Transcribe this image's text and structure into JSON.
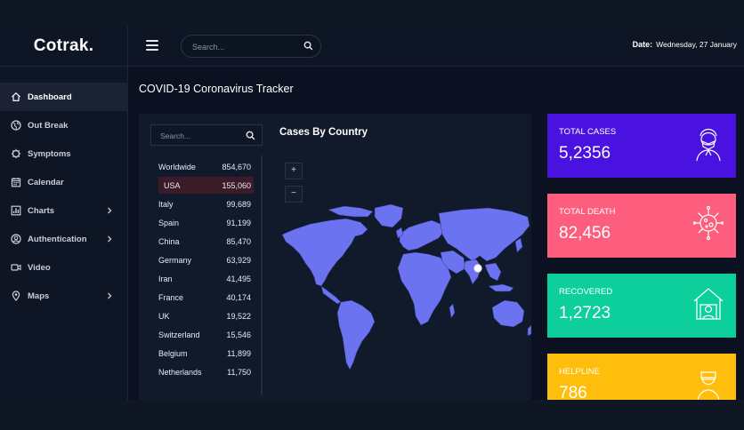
{
  "brand": "Cotrak.",
  "topbar": {
    "search_placeholder": "Search...",
    "date_label": "Date:",
    "date_value": "Wednesday, 27 January"
  },
  "sidebar": {
    "items": [
      {
        "label": "Dashboard",
        "icon": "home-icon",
        "active": true
      },
      {
        "label": "Out Break",
        "icon": "globe-icon"
      },
      {
        "label": "Symptoms",
        "icon": "virus-icon"
      },
      {
        "label": "Calendar",
        "icon": "calendar-icon"
      },
      {
        "label": "Charts",
        "icon": "chart-icon",
        "submenu": true
      },
      {
        "label": "Authentication",
        "icon": "user-icon",
        "submenu": true
      },
      {
        "label": "Video",
        "icon": "video-icon"
      },
      {
        "label": "Maps",
        "icon": "map-pin-icon",
        "submenu": true
      }
    ]
  },
  "page": {
    "title": "COVID-19 Coronavirus Tracker"
  },
  "country_panel": {
    "search_placeholder": "Search...",
    "rows": [
      {
        "name": "Worldwide",
        "value": "854,670"
      },
      {
        "name": "USA",
        "value": "155,060",
        "selected": true
      },
      {
        "name": "Italy",
        "value": "99,689"
      },
      {
        "name": "Spain",
        "value": "91,199"
      },
      {
        "name": "China",
        "value": "85,470"
      },
      {
        "name": "Germany",
        "value": "63,929"
      },
      {
        "name": "Iran",
        "value": "41,495"
      },
      {
        "name": "France",
        "value": "40,174"
      },
      {
        "name": "UK",
        "value": "19,522"
      },
      {
        "name": "Switzerland",
        "value": "15,546"
      },
      {
        "name": "Belgium",
        "value": "11,899"
      },
      {
        "name": "Netherlands",
        "value": "11,750"
      }
    ]
  },
  "map_panel": {
    "title": "Cases By Country",
    "zoom_in": "+",
    "zoom_out": "−",
    "land_color": "#6b73f0"
  },
  "cards": [
    {
      "label": "TOTAL CASES",
      "value": "5,2356",
      "color": "#4a12e0",
      "icon": "masked-person-icon"
    },
    {
      "label": "TOTAL DEATH",
      "value": "82,456",
      "color": "#fe5e7d",
      "icon": "virus-icon"
    },
    {
      "label": "RECOVERED",
      "value": "1,2723",
      "color": "#0ccf9b",
      "icon": "house-person-icon"
    },
    {
      "label": "HELPLINE",
      "value": "786",
      "color": "#ffbe0b",
      "icon": "doctor-icon"
    }
  ]
}
